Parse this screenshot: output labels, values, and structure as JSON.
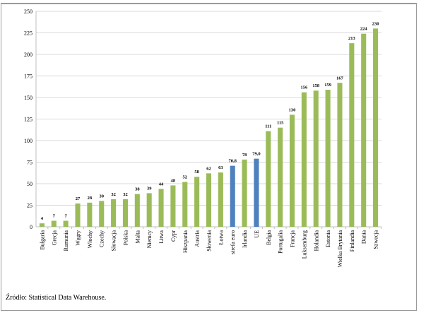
{
  "chart_data": {
    "type": "bar",
    "title": "",
    "xlabel": "",
    "ylabel": "",
    "ylim": [
      0,
      250
    ],
    "yticks": [
      0,
      25,
      50,
      75,
      100,
      125,
      150,
      175,
      200,
      225,
      250
    ],
    "grid": true,
    "legend": "none",
    "categories": [
      "Bułgaria",
      "Grecja",
      "Rumunia",
      "Węgry",
      "Włochy",
      "Czechy",
      "Słowacja",
      "Polska",
      "Malta",
      "Niemcy",
      "Litwa",
      "Cypr",
      "Hiszpania",
      "Austria",
      "Słowenia",
      "Łotwa",
      "strefa euro",
      "Irlandia",
      "UE",
      "Belgia",
      "Portugalia",
      "Francja",
      "Luksemburg",
      "Holandia",
      "Estonia",
      "Wielka Brytania",
      "Finlandia",
      "Dania",
      "Szwecja"
    ],
    "values": [
      4,
      7,
      7,
      27,
      28,
      30,
      32,
      32,
      38,
      39,
      44,
      48,
      52,
      58,
      62,
      63,
      70.8,
      78,
      79.0,
      111,
      115,
      130,
      156,
      158,
      159,
      167,
      213,
      224,
      230
    ],
    "data_labels": [
      "4",
      "7",
      "7",
      "27",
      "28",
      "30",
      "32",
      "32",
      "38",
      "39",
      "44",
      "48",
      "52",
      "58",
      "62",
      "63",
      "70,8",
      "78",
      "79,0",
      "111",
      "115",
      "130",
      "156",
      "158",
      "159",
      "167",
      "213",
      "224",
      "230"
    ],
    "highlighted": [
      "strefa euro",
      "UE"
    ],
    "colors": {
      "bar": "#9bbb59",
      "highlight": "#4f81bd",
      "grid": "#d9d9d9",
      "axis": "#bfbfbf"
    }
  },
  "source": "Źródło: Statistical Data Warehouse."
}
